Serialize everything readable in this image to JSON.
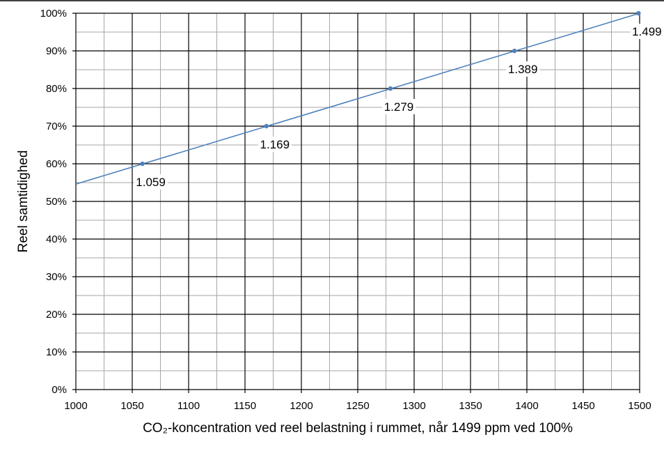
{
  "chart_data": {
    "type": "line",
    "title": "",
    "xlabel": "CO₂-koncentration ved reel belastning i rummet, når 1499 ppm ved 100%",
    "ylabel": "Reel samtidighed",
    "xlim": [
      1000,
      1500
    ],
    "ylim": [
      0,
      100
    ],
    "x_ticks": [
      "1000",
      "1050",
      "1100",
      "1150",
      "1200",
      "1250",
      "1300",
      "1350",
      "1400",
      "1450",
      "1500"
    ],
    "y_ticks": [
      "0%",
      "10%",
      "20%",
      "30%",
      "40%",
      "50%",
      "60%",
      "70%",
      "80%",
      "90%",
      "100%"
    ],
    "grid": true,
    "legend": "none",
    "line_color": "#4f81bd",
    "series": [
      {
        "x": [
          1000,
          1500
        ],
        "y": [
          54.6,
          100
        ]
      }
    ],
    "points": [
      {
        "x": 1059,
        "y": 60,
        "label": "1.059"
      },
      {
        "x": 1169,
        "y": 70,
        "label": "1.169"
      },
      {
        "x": 1279,
        "y": 80,
        "label": "1.279"
      },
      {
        "x": 1389,
        "y": 90,
        "label": "1.389"
      },
      {
        "x": 1499,
        "y": 100,
        "label": "1.499"
      }
    ]
  }
}
